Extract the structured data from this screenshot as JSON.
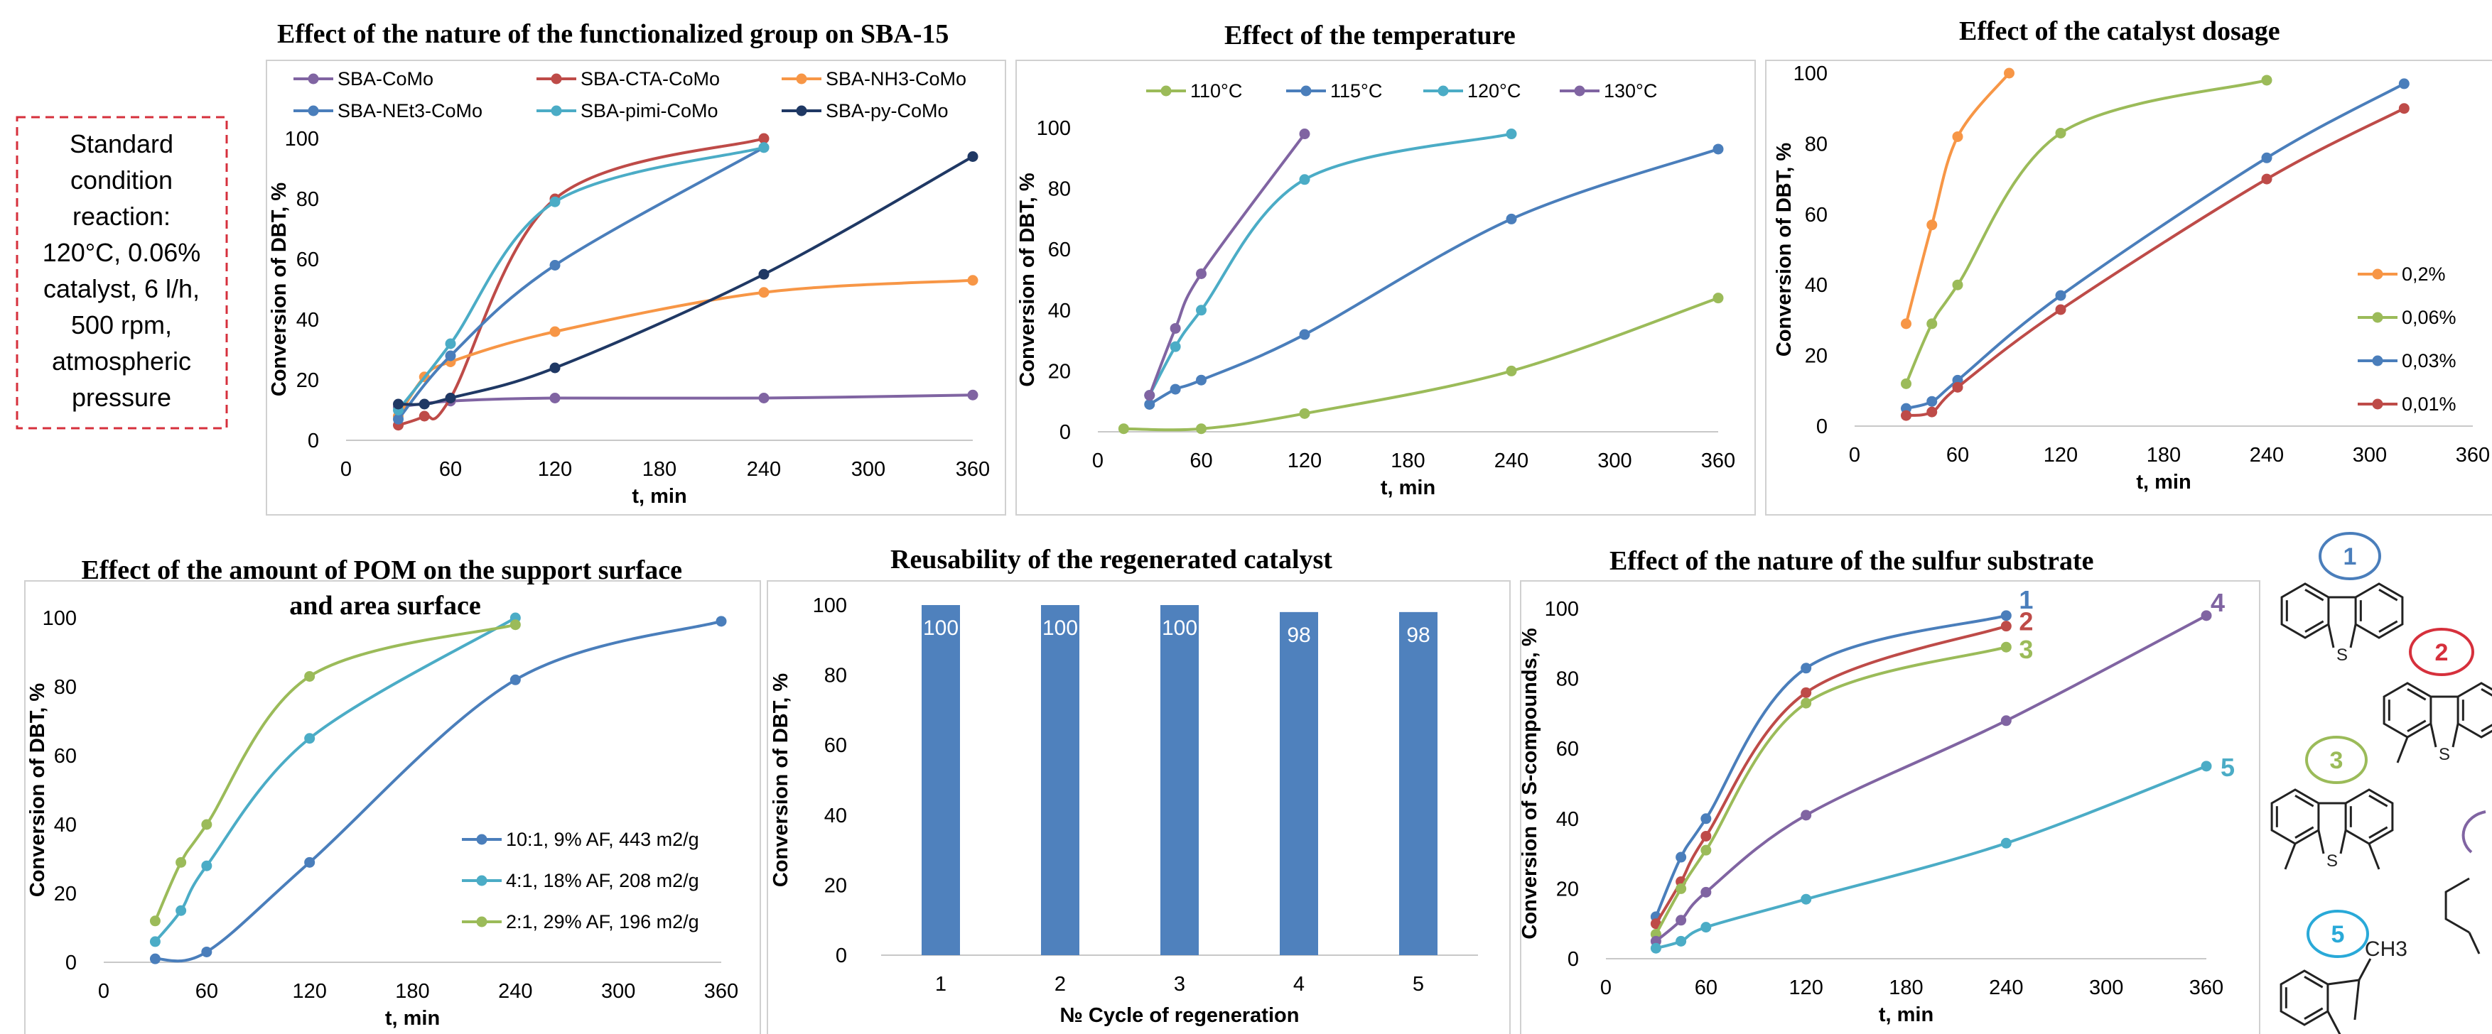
{
  "note": {
    "lines": [
      "Standard",
      "condition",
      "reaction:",
      "120°C, 0.06%",
      "catalyst, 6 l/h,",
      "500 rpm,",
      "atmospheric",
      "pressure"
    ]
  },
  "colors": {
    "blue": "#4a7ebb",
    "red": "#be4b48",
    "orange": "#f79646",
    "purple": "#8064a2",
    "teal": "#4bacc6",
    "green": "#9bbb59",
    "navy": "#1f3864",
    "bar": "#4f81bd",
    "note_border": "#d6303c"
  },
  "chart_data": [
    {
      "id": "c1",
      "type": "line",
      "title": "Effect of the nature of the functionalized group on SBA-15",
      "xlabel": "t, min",
      "ylabel": "Conversion of DBT, %",
      "xlim": [
        0,
        360
      ],
      "ylim": [
        0,
        100
      ],
      "xticks": [
        0,
        60,
        120,
        180,
        240,
        300,
        360
      ],
      "yticks": [
        0,
        20,
        40,
        60,
        80,
        100
      ],
      "legend": "top",
      "series": [
        {
          "name": "SBA-CoMo",
          "color": "#8064a2",
          "x": [
            30,
            60,
            120,
            240,
            360
          ],
          "y": [
            11,
            13,
            14,
            14,
            15
          ]
        },
        {
          "name": "SBA-CTA-CoMo",
          "color": "#be4b48",
          "x": [
            30,
            45,
            60,
            120,
            240
          ],
          "y": [
            5,
            8,
            14,
            80,
            100
          ]
        },
        {
          "name": "SBA-NH3-CoMo",
          "color": "#f79646",
          "x": [
            30,
            45,
            60,
            120,
            240,
            360
          ],
          "y": [
            8,
            21,
            26,
            36,
            49,
            53
          ]
        },
        {
          "name": "SBA-NEt3-CoMo",
          "color": "#4a7ebb",
          "x": [
            30,
            60,
            120,
            240
          ],
          "y": [
            7,
            28,
            58,
            97
          ]
        },
        {
          "name": "SBA-pimi-CoMo",
          "color": "#4bacc6",
          "x": [
            30,
            60,
            120,
            240
          ],
          "y": [
            10,
            32,
            79,
            97
          ]
        },
        {
          "name": "SBA-py-CoMo",
          "color": "#1f3864",
          "x": [
            30,
            45,
            60,
            120,
            240,
            360
          ],
          "y": [
            12,
            12,
            14,
            24,
            55,
            94
          ]
        }
      ]
    },
    {
      "id": "c2",
      "type": "line",
      "title": "Effect of the temperature",
      "xlabel": "t, min",
      "ylabel": "Conversion of DBT, %",
      "xlim": [
        0,
        360
      ],
      "ylim": [
        0,
        100
      ],
      "xticks": [
        0,
        60,
        120,
        180,
        240,
        300,
        360
      ],
      "yticks": [
        0,
        20,
        40,
        60,
        80,
        100
      ],
      "legend": "top",
      "series": [
        {
          "name": "110°C",
          "color": "#9bbb59",
          "x": [
            15,
            60,
            120,
            240,
            360
          ],
          "y": [
            1,
            1,
            6,
            20,
            44
          ]
        },
        {
          "name": "115°C",
          "color": "#4a7ebb",
          "x": [
            30,
            45,
            60,
            120,
            240,
            360
          ],
          "y": [
            9,
            14,
            17,
            32,
            70,
            93
          ]
        },
        {
          "name": "120°C",
          "color": "#4bacc6",
          "x": [
            30,
            45,
            60,
            120,
            240
          ],
          "y": [
            12,
            28,
            40,
            83,
            98
          ]
        },
        {
          "name": "130°C",
          "color": "#8064a2",
          "x": [
            30,
            45,
            60,
            120
          ],
          "y": [
            12,
            34,
            52,
            98
          ]
        }
      ]
    },
    {
      "id": "c3",
      "type": "line",
      "title": "Effect of the catalyst dosage",
      "xlabel": "t, min",
      "ylabel": "Conversion of DBT, %",
      "xlim": [
        0,
        360
      ],
      "ylim": [
        0,
        100
      ],
      "xticks": [
        0,
        60,
        120,
        180,
        240,
        300,
        360
      ],
      "yticks": [
        0,
        20,
        40,
        60,
        80,
        100
      ],
      "legend": "right",
      "series": [
        {
          "name": "0,2%",
          "color": "#f79646",
          "x": [
            30,
            45,
            60,
            90
          ],
          "y": [
            29,
            57,
            82,
            100
          ]
        },
        {
          "name": "0,06%",
          "color": "#9bbb59",
          "x": [
            30,
            45,
            60,
            120,
            240
          ],
          "y": [
            12,
            29,
            40,
            83,
            98
          ]
        },
        {
          "name": "0,03%",
          "color": "#4a7ebb",
          "x": [
            30,
            45,
            60,
            120,
            240,
            320
          ],
          "y": [
            5,
            7,
            13,
            37,
            76,
            97
          ]
        },
        {
          "name": "0,01%",
          "color": "#be4b48",
          "x": [
            30,
            45,
            60,
            120,
            240,
            320
          ],
          "y": [
            3,
            4,
            11,
            33,
            70,
            90
          ]
        }
      ]
    },
    {
      "id": "c4",
      "type": "line",
      "title": "Effect of the amount of POM on the support surface and area surface",
      "xlabel": "t, min",
      "ylabel": "Conversion of DBT, %",
      "xlim": [
        0,
        360
      ],
      "ylim": [
        0,
        100
      ],
      "xticks": [
        0,
        60,
        120,
        180,
        240,
        300,
        360
      ],
      "yticks": [
        0,
        20,
        40,
        60,
        80,
        100
      ],
      "legend": "bottom-right",
      "series": [
        {
          "name": "10:1, 9% AF, 443 m2/g",
          "color": "#4a7ebb",
          "x": [
            30,
            60,
            120,
            240,
            360
          ],
          "y": [
            1,
            3,
            29,
            82,
            99
          ]
        },
        {
          "name": "4:1, 18% AF, 208 m2/g",
          "color": "#4bacc6",
          "x": [
            30,
            45,
            60,
            120,
            240
          ],
          "y": [
            6,
            15,
            28,
            65,
            100
          ]
        },
        {
          "name": "2:1, 29% AF, 196 m2/g",
          "color": "#9bbb59",
          "x": [
            30,
            45,
            60,
            120,
            240
          ],
          "y": [
            12,
            29,
            40,
            83,
            98
          ]
        }
      ]
    },
    {
      "id": "c5",
      "type": "bar",
      "title": "Reusability of the regenerated catalyst",
      "xlabel": "№ Cycle of regeneration",
      "ylabel": "Conversion of DBT, %",
      "ylim": [
        0,
        100
      ],
      "yticks": [
        0,
        20,
        40,
        60,
        80,
        100
      ],
      "categories": [
        "1",
        "2",
        "3",
        "4",
        "5"
      ],
      "values": [
        100,
        100,
        100,
        98,
        98
      ],
      "labels": [
        "100",
        "100",
        "100",
        "98",
        "98"
      ]
    },
    {
      "id": "c6",
      "type": "line",
      "title": "Effect of the nature of the sulfur substrate",
      "xlabel": "t, min",
      "ylabel": "Conversion of S-compounds, %",
      "xlim": [
        0,
        360
      ],
      "ylim": [
        0,
        100
      ],
      "xticks": [
        0,
        60,
        120,
        180,
        240,
        300,
        360
      ],
      "yticks": [
        0,
        20,
        40,
        60,
        80,
        100
      ],
      "series": [
        {
          "name": "1",
          "color": "#4a7ebb",
          "x": [
            30,
            45,
            60,
            120,
            240
          ],
          "y": [
            12,
            29,
            40,
            83,
            98
          ]
        },
        {
          "name": "2",
          "color": "#be4b48",
          "x": [
            30,
            45,
            60,
            120,
            240
          ],
          "y": [
            10,
            22,
            35,
            76,
            95
          ]
        },
        {
          "name": "3",
          "color": "#9bbb59",
          "x": [
            30,
            45,
            60,
            120,
            240
          ],
          "y": [
            7,
            20,
            31,
            73,
            89
          ]
        },
        {
          "name": "4",
          "color": "#8064a2",
          "x": [
            30,
            45,
            60,
            120,
            240,
            360
          ],
          "y": [
            5,
            11,
            19,
            41,
            68,
            98
          ]
        },
        {
          "name": "5",
          "color": "#4bacc6",
          "x": [
            30,
            45,
            60,
            120,
            240,
            360
          ],
          "y": [
            3,
            5,
            9,
            17,
            33,
            55
          ]
        }
      ]
    }
  ],
  "structures": {
    "labels": [
      "1",
      "2",
      "3",
      "4",
      "5"
    ],
    "methyl_label": "CH3",
    "sulfur_label": "S"
  }
}
